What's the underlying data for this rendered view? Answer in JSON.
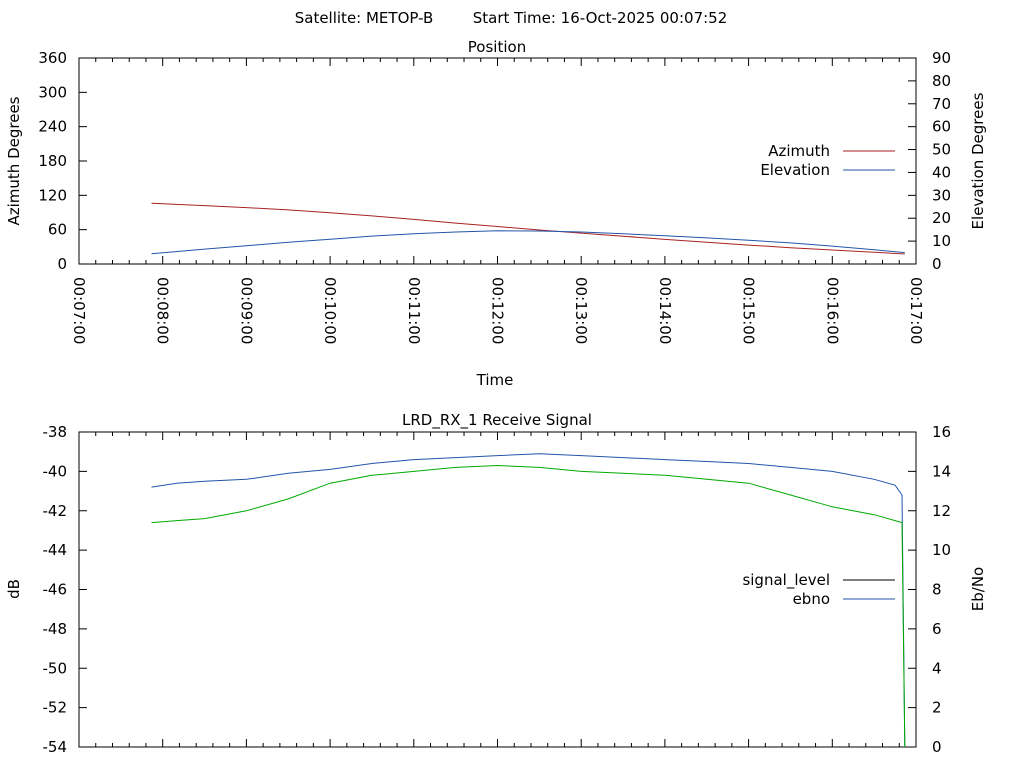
{
  "header": {
    "satellite_label": "Satellite: METOP-B",
    "start_time_label": "Start Time: 16-Oct-2025 00:07:52"
  },
  "chart_data": [
    {
      "type": "line",
      "title": "Position",
      "xlabel": "Time",
      "ylabel": "Azimuth Degrees",
      "y2label": "Elevation Degrees",
      "x_ticks": [
        "00:07:00",
        "00:08:00",
        "00:09:00",
        "00:10:00",
        "00:11:00",
        "00:12:00",
        "00:13:00",
        "00:14:00",
        "00:15:00",
        "00:16:00",
        "00:17:00"
      ],
      "xlim": [
        "00:07:00",
        "00:17:00"
      ],
      "ylim": [
        0,
        360
      ],
      "y_ticks": [
        0,
        60,
        120,
        180,
        240,
        300,
        360
      ],
      "y2lim": [
        0,
        90
      ],
      "y2_ticks": [
        0,
        10,
        20,
        30,
        40,
        50,
        60,
        70,
        80,
        90
      ],
      "grid": false,
      "legend": "right",
      "series": [
        {
          "name": "Azimuth",
          "axis": "y",
          "color": "#aa2222",
          "x": [
            "00:07:52",
            "00:08:30",
            "00:09:00",
            "00:09:30",
            "00:10:00",
            "00:10:30",
            "00:11:00",
            "00:11:30",
            "00:12:00",
            "00:12:30",
            "00:13:00",
            "00:13:30",
            "00:14:00",
            "00:14:30",
            "00:15:00",
            "00:15:30",
            "00:16:00",
            "00:16:30",
            "00:16:52"
          ],
          "y": [
            106,
            102,
            98.5,
            94.5,
            89.5,
            84,
            78,
            71.5,
            65.5,
            59.5,
            54,
            48.5,
            43,
            38,
            33,
            28.5,
            24.5,
            20.5,
            17.5
          ]
        },
        {
          "name": "Elevation",
          "axis": "y2",
          "color": "#2255aa",
          "x": [
            "00:07:52",
            "00:08:30",
            "00:09:00",
            "00:09:30",
            "00:10:00",
            "00:10:30",
            "00:11:00",
            "00:11:30",
            "00:12:00",
            "00:12:30",
            "00:13:00",
            "00:13:30",
            "00:14:00",
            "00:14:30",
            "00:15:00",
            "00:15:30",
            "00:16:00",
            "00:16:30",
            "00:16:52"
          ],
          "y": [
            4.5,
            6.5,
            8,
            9.5,
            10.8,
            12.2,
            13.2,
            14,
            14.5,
            14.4,
            14,
            13.2,
            12.3,
            11.4,
            10.4,
            9.2,
            7.8,
            6.2,
            5
          ]
        }
      ]
    },
    {
      "type": "line",
      "title": "LRD_RX_1 Receive Signal",
      "xlabel": "",
      "ylabel": "dB",
      "y2label": "Eb/No",
      "xlim": [
        "00:07:00",
        "00:17:00"
      ],
      "ylim": [
        -54,
        -38
      ],
      "y_ticks": [
        -54,
        -52,
        -50,
        -48,
        -46,
        -44,
        -42,
        -40,
        -38
      ],
      "y2lim": [
        0,
        16
      ],
      "y2_ticks": [
        0,
        2,
        4,
        6,
        8,
        10,
        12,
        14,
        16
      ],
      "grid": false,
      "legend": "right",
      "series": [
        {
          "name": "signal_level",
          "axis": "y",
          "color": "#000000",
          "x": [],
          "y": []
        },
        {
          "name": "ebno",
          "axis": "y2",
          "color": "#2255aa",
          "x": [
            "00:07:52",
            "00:08:10",
            "00:08:30",
            "00:09:00",
            "00:09:30",
            "00:10:00",
            "00:10:30",
            "00:11:00",
            "00:11:30",
            "00:12:00",
            "00:12:30",
            "00:13:00",
            "00:13:30",
            "00:14:00",
            "00:14:30",
            "00:15:00",
            "00:15:30",
            "00:16:00",
            "00:16:30",
            "00:16:45",
            "00:16:50",
            "00:16:52"
          ],
          "y": [
            13.2,
            13.4,
            13.5,
            13.6,
            13.9,
            14.1,
            14.4,
            14.6,
            14.7,
            14.8,
            14.9,
            14.8,
            14.7,
            14.6,
            14.5,
            14.4,
            14.2,
            14,
            13.6,
            13.3,
            12.8,
            0
          ]
        },
        {
          "name": "",
          "axis": "y",
          "color": "#00aa00",
          "x": [
            "00:07:52",
            "00:08:10",
            "00:08:30",
            "00:09:00",
            "00:09:30",
            "00:10:00",
            "00:10:30",
            "00:11:00",
            "00:11:30",
            "00:12:00",
            "00:12:30",
            "00:13:00",
            "00:13:30",
            "00:14:00",
            "00:14:30",
            "00:15:00",
            "00:15:30",
            "00:16:00",
            "00:16:30",
            "00:16:45",
            "00:16:50",
            "00:16:52"
          ],
          "y": [
            -42.6,
            -42.5,
            -42.4,
            -42.0,
            -41.4,
            -40.6,
            -40.2,
            -40.0,
            -39.8,
            -39.7,
            -39.8,
            -40.0,
            -40.1,
            -40.2,
            -40.4,
            -40.6,
            -41.2,
            -41.8,
            -42.2,
            -42.5,
            -42.6,
            -54
          ]
        }
      ]
    }
  ]
}
